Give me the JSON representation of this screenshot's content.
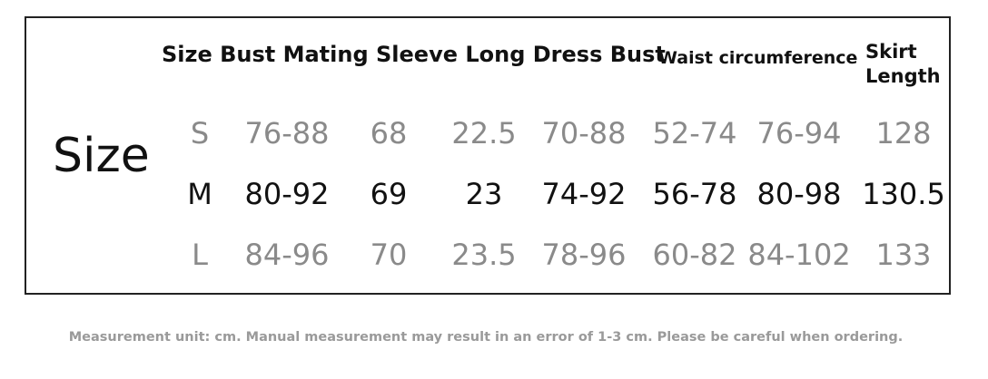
{
  "header": {
    "main": "Size Bust Mating Sleeve Long Dress Bust",
    "waist": "Waist circumference",
    "skirt": "Skirt Length"
  },
  "row_title": "Size",
  "table": {
    "rows": [
      {
        "size": "S",
        "values": [
          "76-88",
          "68",
          "22.5",
          "70-88",
          "52-74",
          "76-94",
          "128"
        ]
      },
      {
        "size": "M",
        "values": [
          "80-92",
          "69",
          "23",
          "74-92",
          "56-78",
          "80-98",
          "130.5"
        ]
      },
      {
        "size": "L",
        "values": [
          "84-96",
          "70",
          "23.5",
          "78-96",
          "60-82",
          "84-102",
          "133"
        ]
      }
    ]
  },
  "footer": "Measurement unit: cm. Manual measurement may result in an error of 1-3 cm. Please be careful when ordering."
}
